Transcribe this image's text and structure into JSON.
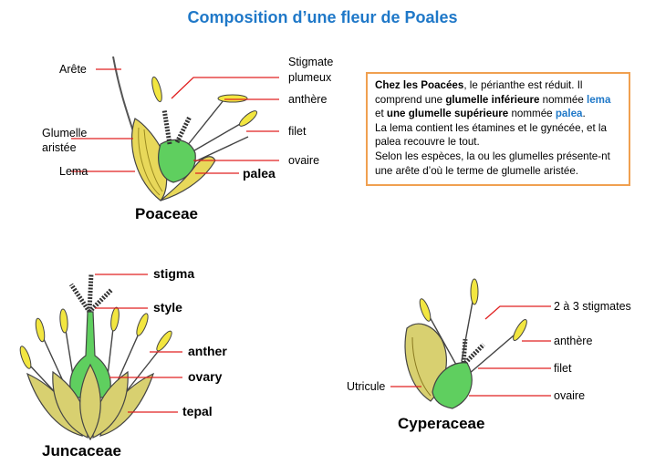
{
  "title": "Composition d’une fleur de Poales",
  "poaceae": {
    "caption": "Poaceae",
    "labels": {
      "arete": "Arête",
      "glumelle1": "Glumelle",
      "glumelle2": "aristée",
      "lema": "Lema",
      "stigmate1": "Stigmate",
      "stigmate2": "plumeux",
      "anthere": "anthère",
      "filet": "filet",
      "ovaire": "ovaire",
      "palea": "palea"
    }
  },
  "infobox": {
    "l1a": "Chez les Poacées",
    "l1b": ", le périanthe est réduit. Il",
    "l2a": "comprend une ",
    "l2b": "glumelle inférieure",
    "l2c": " nommée ",
    "l2d": "lema",
    "l3a": "et ",
    "l3b": "une glumelle supérieure",
    "l3c": " nommée ",
    "l3d": "palea",
    "l3e": ".",
    "l4": "La lema contient les étamines et le gynécée, et la",
    "l5": "palea recouvre le tout.",
    "l6": "Selon les espèces, la ou les glumelles présente-nt",
    "l7": "une arête d’où le terme de glumelle aristée."
  },
  "juncaceae": {
    "caption": "Juncaceae",
    "labels": {
      "stigma": "stigma",
      "style": "style",
      "anther": "anther",
      "ovary": "ovary",
      "tepal": "tepal"
    }
  },
  "cyperaceae": {
    "caption": "Cyperaceae",
    "labels": {
      "stigmates": "2 à 3 stigmates",
      "anthere": "anthère",
      "filet": "filet",
      "ovaire": "ovaire",
      "utricule": "Utricule"
    }
  },
  "colors": {
    "title": "#1f78c8",
    "leader": "#e02020",
    "anther": "#f2e640",
    "ovary": "#5fcf5f",
    "glume": "#d8d070",
    "box_border": "#f0a050"
  }
}
